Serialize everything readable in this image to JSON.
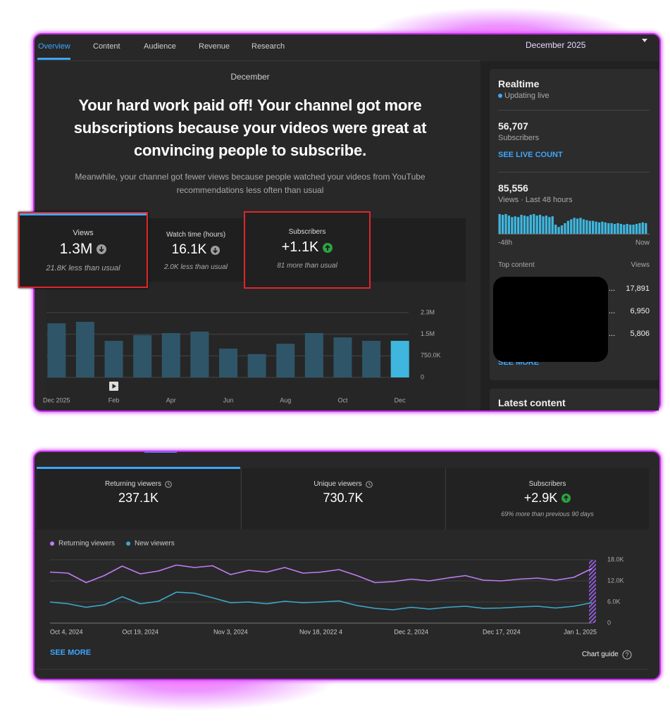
{
  "tabs": [
    "Overview",
    "Content",
    "Audience",
    "Revenue",
    "Research"
  ],
  "period": "December 2025",
  "summary": {
    "month": "December",
    "headline": "Your hard work paid off! Your channel got more subscriptions because your videos were great at convincing people to subscribe.",
    "subtext": "Meanwhile, your channel got fewer views because people watched your videos from YouTube recommendations less often than usual"
  },
  "metric_cards": [
    {
      "label": "Views",
      "value": "1.3M",
      "note": "21.8K less than usual"
    },
    {
      "label": "Watch time (hours)",
      "value": "16.1K",
      "note": "2.0K less than usual"
    },
    {
      "label": "Subscribers",
      "value": "+1.1K",
      "note": "81 more than usual"
    }
  ],
  "realtime": {
    "title": "Realtime",
    "status": "Updating live",
    "subscribers_value": "56,707",
    "subscribers_label": "Subscribers",
    "live_count_link": "SEE LIVE COUNT",
    "views_value": "85,556",
    "views_label": "Views · Last 48 hours",
    "top_content_label": "Top content",
    "views_column": "Views",
    "top_content": [
      {
        "title": "...",
        "views": "17,891"
      },
      {
        "title": "...",
        "views": "6,950"
      },
      {
        "title": "...",
        "views": "5,806"
      }
    ],
    "see_more": "SEE MORE"
  },
  "latest_content": "Latest content",
  "audience": {
    "cards": [
      {
        "label": "Returning viewers",
        "value": "237.1K"
      },
      {
        "label": "Unique viewers",
        "value": "730.7K"
      },
      {
        "label": "Subscribers",
        "value": "+2.9K",
        "note": "69% more than previous 90 days"
      }
    ],
    "see_more": "SEE MORE",
    "chart_guide": "Chart guide"
  },
  "chart_data": [
    {
      "type": "bar",
      "categories": [
        "Dec 2025",
        null,
        "Feb",
        null,
        "Apr",
        null,
        "Jun",
        null,
        "Aug",
        null,
        "Oct",
        null,
        "Dec"
      ],
      "values": [
        1880000,
        1930000,
        1270000,
        1470000,
        1540000,
        1590000,
        1000000,
        810000,
        1170000,
        1540000,
        1390000,
        1270000,
        1270000
      ],
      "colors": [
        "#2e5668",
        "#2e5668",
        "#2e5668",
        "#2e5668",
        "#2e5668",
        "#2e5668",
        "#2e5668",
        "#2e5668",
        "#2e5668",
        "#2e5668",
        "#2e5668",
        "#2e5668",
        "#3fb6de"
      ],
      "ylim": [
        0,
        2250000
      ],
      "yticks": [
        0,
        {
          "value": 750000,
          "label": "750.0K"
        },
        {
          "value": 1500000,
          "label": "1.5M"
        },
        {
          "value": 2250000,
          "label": "2.3M"
        }
      ],
      "grid": true
    },
    {
      "type": "bar",
      "categories": [
        "-48h",
        null,
        null,
        null,
        null,
        null,
        null,
        null,
        null,
        null,
        null,
        null,
        null,
        null,
        null,
        null,
        null,
        null,
        null,
        null,
        null,
        null,
        null,
        null,
        null,
        null,
        null,
        null,
        null,
        null,
        null,
        null,
        null,
        null,
        null,
        null,
        null,
        null,
        null,
        null,
        null,
        null,
        null,
        null,
        null,
        null,
        null,
        "Now"
      ],
      "values": [
        2080,
        2000,
        2080,
        1920,
        1760,
        1840,
        1760,
        2000,
        1920,
        1840,
        2000,
        2080,
        1920,
        2000,
        1840,
        1920,
        1760,
        1840,
        960,
        720,
        880,
        1120,
        1360,
        1520,
        1680,
        1600,
        1680,
        1520,
        1440,
        1360,
        1360,
        1280,
        1200,
        1280,
        1200,
        1120,
        1120,
        1040,
        1120,
        1040,
        960,
        1040,
        960,
        960,
        1040,
        1120,
        1200,
        1120
      ],
      "color": "#3fb6de"
    },
    {
      "type": "line",
      "categories": [
        "Oct 4, 2024",
        null,
        null,
        null,
        null,
        "Oct 19, 2024",
        null,
        null,
        null,
        null,
        "Nov 3, 2024",
        null,
        null,
        null,
        null,
        "Nov 18, 2022 4",
        null,
        null,
        null,
        null,
        "Dec 2, 2024",
        null,
        null,
        null,
        null,
        "Dec 17, 2024",
        null,
        null,
        null,
        null,
        "Jan 1, 2025"
      ],
      "series": [
        {
          "name": "Returning viewers",
          "color": "#c07cf4",
          "values": [
            14500,
            14200,
            11500,
            13500,
            16200,
            14000,
            14800,
            16500,
            15800,
            16300,
            13800,
            15000,
            14500,
            15800,
            14200,
            14500,
            15200,
            13500,
            11500,
            11800,
            12500,
            12000,
            12800,
            13500,
            12200,
            12000,
            12500,
            12800,
            12200,
            13000,
            15500
          ]
        },
        {
          "name": "New viewers",
          "color": "#3ea8cc",
          "values": [
            6000,
            5500,
            4500,
            5200,
            7500,
            5500,
            6200,
            8800,
            8500,
            7200,
            5800,
            6000,
            5500,
            6200,
            5800,
            6000,
            6300,
            5000,
            4200,
            3800,
            4500,
            4000,
            4500,
            4800,
            4200,
            4300,
            4600,
            4800,
            4300,
            4800,
            5800
          ]
        }
      ],
      "ylim": [
        0,
        18000
      ],
      "yticks": [
        0,
        {
          "value": 6000,
          "label": "6.0K"
        },
        {
          "value": 12000,
          "label": "12.0K"
        },
        {
          "value": 18000,
          "label": "18.0K"
        }
      ],
      "grid": true
    }
  ]
}
